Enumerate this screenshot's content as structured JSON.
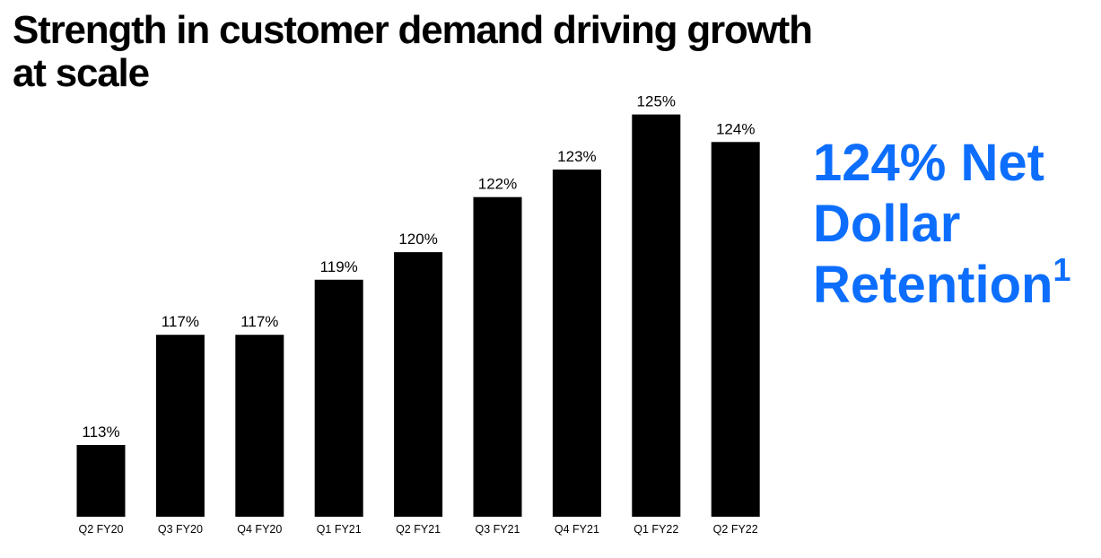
{
  "title": {
    "line1": "Strength in customer demand driving growth",
    "line2": "at scale"
  },
  "callout": {
    "line1": "124% Net",
    "line2": "Dollar",
    "line3": "Retention",
    "footnote_mark": "1",
    "color": "#0d6efd"
  },
  "chart_data": {
    "type": "bar",
    "categories": [
      "Q2 FY20",
      "Q3 FY20",
      "Q4 FY20",
      "Q1 FY21",
      "Q2 FY21",
      "Q3 FY21",
      "Q4 FY21",
      "Q1 FY22",
      "Q2 FY22"
    ],
    "values": [
      113,
      117,
      117,
      119,
      120,
      122,
      123,
      125,
      124
    ],
    "data_labels": [
      "113%",
      "117%",
      "117%",
      "119%",
      "120%",
      "122%",
      "123%",
      "125%",
      "124%"
    ],
    "value_unit": "%",
    "bar_color": "#000000",
    "grid": false,
    "legend": "none"
  }
}
